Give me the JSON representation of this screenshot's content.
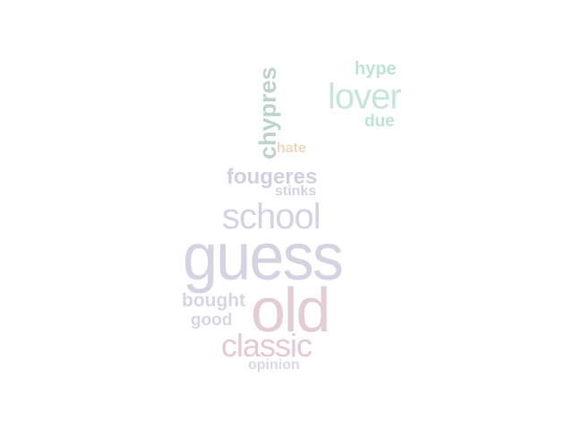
{
  "words": [
    {
      "text": "guess",
      "color": "#d6d2e2"
    },
    {
      "text": "old",
      "color": "#e2ccd6"
    },
    {
      "text": "school",
      "color": "#d4d3e6"
    },
    {
      "text": "classic",
      "color": "#e6c9d6"
    },
    {
      "text": "lover",
      "color": "#c7e6da"
    },
    {
      "text": "fougeres",
      "color": "#d2cfe0"
    },
    {
      "text": "bought",
      "color": "#d8d6e4"
    },
    {
      "text": "good",
      "color": "#d8d6e4"
    },
    {
      "text": "hype",
      "color": "#bfe3d6"
    },
    {
      "text": "due",
      "color": "#bfe3d6"
    },
    {
      "text": "stinks",
      "color": "#d4d2e2"
    },
    {
      "text": "hate",
      "color": "#ecd8bd"
    },
    {
      "text": "opinion",
      "color": "#dcd7e6"
    },
    {
      "text": "chypres",
      "color": "#bfd3cc"
    }
  ]
}
